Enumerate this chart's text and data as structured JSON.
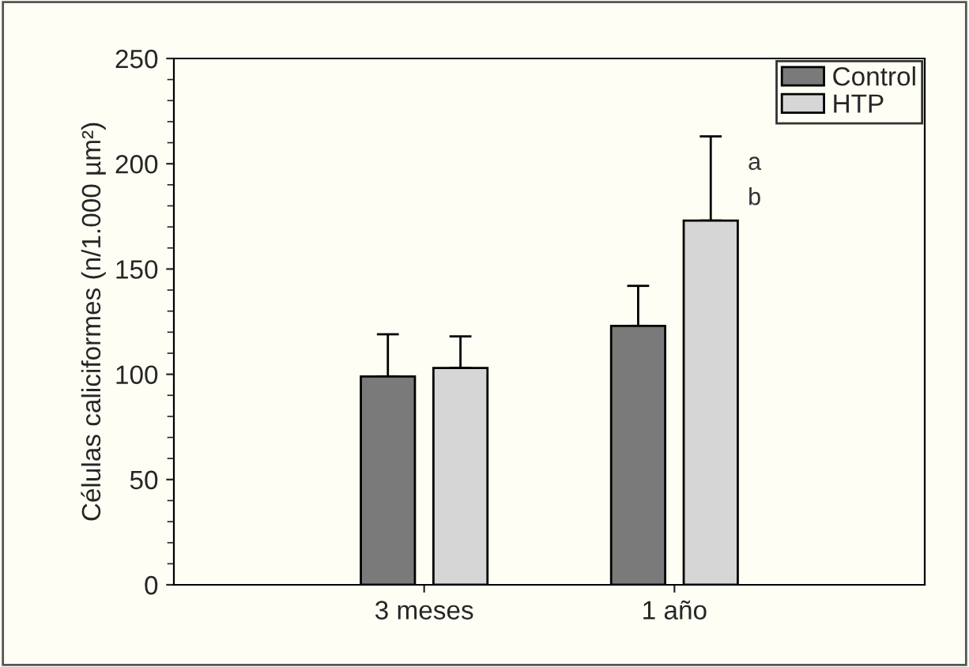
{
  "chart_data": {
    "type": "bar",
    "ylabel": "Células caliciformes (n/1.000 µm²)",
    "categories": [
      "3 meses",
      "1 año"
    ],
    "series": [
      {
        "name": "Control",
        "color": "#7a7a7a",
        "values": [
          99,
          123
        ],
        "errors": [
          20,
          19
        ]
      },
      {
        "name": "HTP",
        "color": "#d6d6d6",
        "values": [
          103,
          173
        ],
        "errors": [
          15,
          40
        ]
      }
    ],
    "ylim": [
      0,
      250
    ],
    "yticks": [
      0,
      50,
      100,
      150,
      200,
      250
    ],
    "legend": "top right",
    "grid": false,
    "annotations": [
      "a",
      "b"
    ]
  }
}
